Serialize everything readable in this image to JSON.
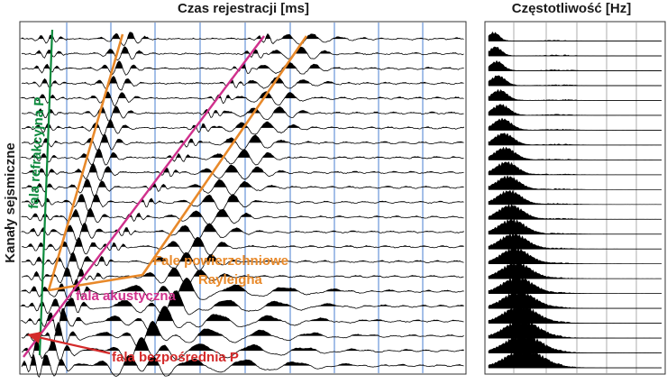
{
  "titles": {
    "time": "Czas rejestracji [ms]",
    "frequency": "Częstotliwość [Hz]",
    "channels": "Kanały sejsmiczne"
  },
  "annotations": {
    "refraction": "fala refrakcyjna P",
    "surface_line1": "Fale powierzchniowe",
    "surface_line2": "Rayleigha",
    "acoustic": "fala akustyczna",
    "direct": "fala bezpośrednia P"
  },
  "colors": {
    "refraction": "#0c8a3c",
    "surface": "#e8892a",
    "acoustic": "#d0308c",
    "direct": "#d42a2a",
    "grid": "#4a7fd0",
    "trace": "#000000"
  },
  "traces": {
    "count": 23
  }
}
